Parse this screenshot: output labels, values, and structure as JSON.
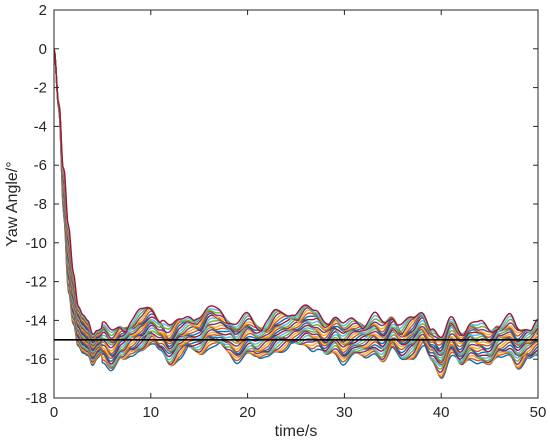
{
  "chart_data": {
    "type": "line",
    "title": "",
    "xlabel": "time/s",
    "ylabel": "Yaw Angle/°",
    "xlim": [
      0,
      50
    ],
    "ylim": [
      -18,
      2
    ],
    "xticks": [
      0,
      10,
      20,
      30,
      40,
      50
    ],
    "xtick_labels": [
      "0",
      "10",
      "20",
      "30",
      "40",
      "50"
    ],
    "yticks": [
      -18,
      -16,
      -14,
      -12,
      -10,
      -8,
      -6,
      -4,
      -2,
      0,
      2
    ],
    "ytick_labels": [
      "-18",
      "-16",
      "-14",
      "-12",
      "-10",
      "-8",
      "-6",
      "-4",
      "-2",
      "0",
      "2"
    ],
    "grid": false,
    "box": true,
    "reference_line": {
      "y": -15,
      "color": "#000000"
    },
    "series_colors": [
      "#0072BD",
      "#D95319",
      "#EDB120",
      "#7E2F8E",
      "#77AC30",
      "#4DBEEE",
      "#A2142F"
    ],
    "series_count": 28,
    "series_offset_range": [
      -0.9,
      1.1
    ],
    "x": [
      0,
      0.5,
      1,
      1.5,
      2,
      2.5,
      3,
      3.5,
      4,
      4.5,
      5,
      6,
      7,
      8,
      9,
      10,
      11,
      12,
      13,
      14,
      15,
      16,
      17,
      18,
      19,
      20,
      21,
      22,
      23,
      24,
      25,
      26,
      27,
      28,
      29,
      30,
      31,
      32,
      33,
      34,
      35,
      36,
      37,
      38,
      39,
      40,
      41,
      42,
      43,
      44,
      45,
      46,
      47,
      48,
      49,
      50
    ],
    "base_y": [
      0,
      -3,
      -7.5,
      -11,
      -13,
      -14.4,
      -14.8,
      -15.0,
      -15.6,
      -15.3,
      -15.1,
      -15.8,
      -15.3,
      -14.9,
      -14.7,
      -14.4,
      -14.8,
      -15.4,
      -15.0,
      -14.8,
      -14.8,
      -14.4,
      -14.6,
      -14.8,
      -15.2,
      -14.9,
      -15.2,
      -15.0,
      -14.7,
      -14.7,
      -14.5,
      -14.3,
      -14.6,
      -15.1,
      -14.7,
      -15.3,
      -15.1,
      -15.0,
      -14.8,
      -15.3,
      -14.7,
      -15.2,
      -15.0,
      -14.6,
      -15.3,
      -15.9,
      -15.0,
      -15.6,
      -15.0,
      -15.3,
      -15.6,
      -15.0,
      -14.9,
      -15.6,
      -15.3,
      -15.0
    ],
    "early_spread": [
      0,
      0.3,
      1.8,
      1.7,
      1.2,
      0.8,
      0.7,
      0.6,
      0.5,
      0.4,
      0.3
    ]
  }
}
